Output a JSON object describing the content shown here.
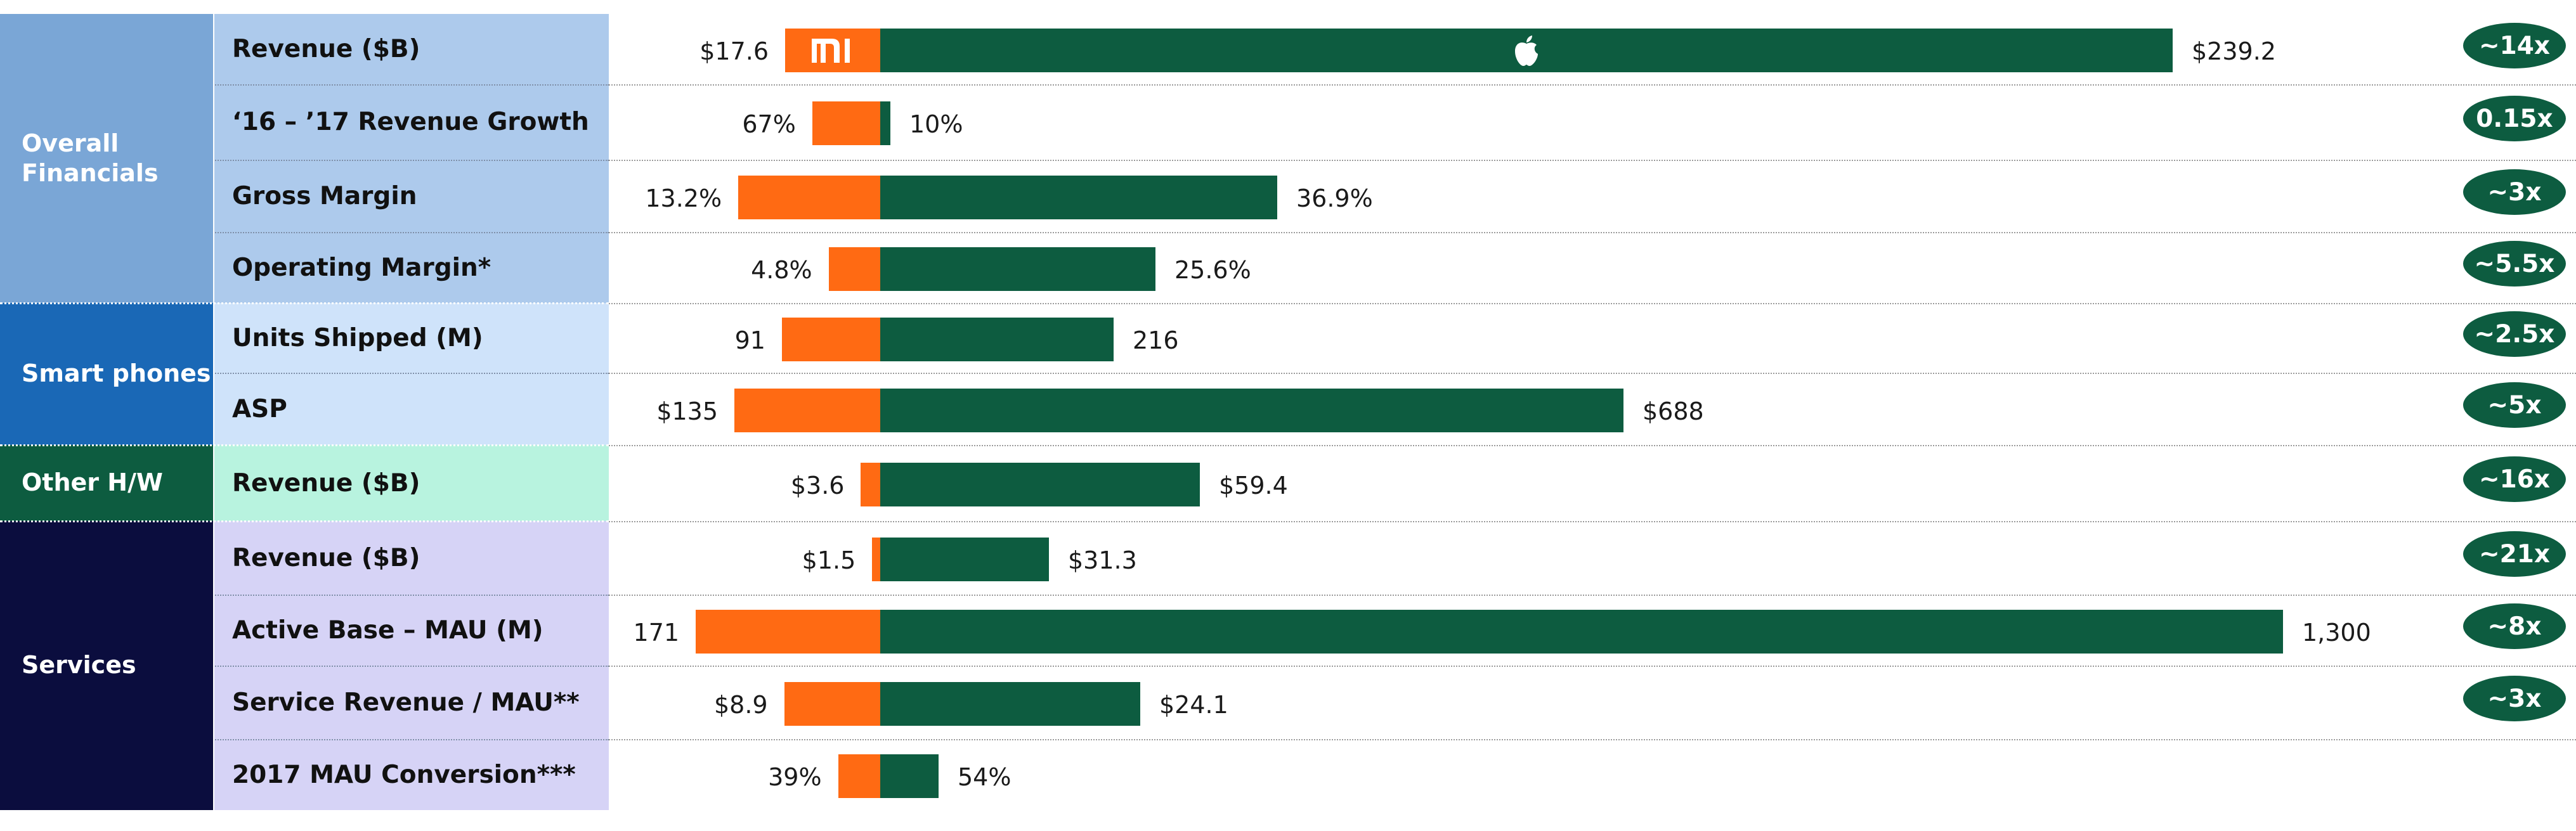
{
  "colors": {
    "xiaomi": "#ff6a13",
    "apple": "#0d5c40",
    "overall_financials": "#7aa6d6",
    "overall_financials_rows": "#adcaec",
    "smart_phones": "#1a68b6",
    "smart_phones_rows": "#cfe3fa",
    "other_hw": "#0d5c40",
    "other_hw_rows": "#b8f3df",
    "services": "#0b0d3e",
    "services_rows": "#d6d3f6"
  },
  "logos": {
    "xiaomi": "xiaomi-logo",
    "apple": "apple-logo"
  },
  "groups": [
    {
      "label": "Overall Financials",
      "rows": [
        0,
        1,
        2,
        3
      ],
      "color": "#7aa6d6",
      "row_color": "#adcaec",
      "text_color": "#ffffff"
    },
    {
      "label": "Smart phones",
      "rows": [
        4,
        5
      ],
      "color": "#1a68b6",
      "row_color": "#cfe3fa",
      "text_color": "#ffffff"
    },
    {
      "label": "Other H/W",
      "rows": [
        6
      ],
      "color": "#0d5c40",
      "row_color": "#b8f3df",
      "text_color": "#ffffff"
    },
    {
      "label": "Services",
      "rows": [
        7,
        8,
        9,
        10
      ],
      "color": "#0b0d3e",
      "row_color": "#d6d3f6",
      "text_color": "#ffffff"
    }
  ],
  "chart_data": {
    "type": "bar",
    "orientation": "horizontal-diverging",
    "note": "Xiaomi bars extend left, Apple bars extend right from a shared baseline; each row has its own scale.",
    "series": [
      {
        "name": "Xiaomi",
        "legend": "xiaomi-logo",
        "color": "#ff6a13"
      },
      {
        "name": "Apple",
        "legend": "apple-logo",
        "color": "#0d5c40"
      }
    ],
    "rows": [
      {
        "metric": "Revenue ($B)",
        "left_value": 17.6,
        "right_value": 239.2,
        "left_label": "$17.6",
        "right_label": "$239.2",
        "multiple": "~14x"
      },
      {
        "metric": "‘16 – ’17 Revenue Growth",
        "left_value": 67,
        "right_value": 10,
        "left_label": "67%",
        "right_label": "10%",
        "multiple": "0.15x"
      },
      {
        "metric": "Gross Margin",
        "left_value": 13.2,
        "right_value": 36.9,
        "left_label": "13.2%",
        "right_label": "36.9%",
        "multiple": "~3x"
      },
      {
        "metric": "Operating Margin*",
        "left_value": 4.8,
        "right_value": 25.6,
        "left_label": "4.8%",
        "right_label": "25.6%",
        "multiple": "~5.5x"
      },
      {
        "metric": "Units Shipped (M)",
        "left_value": 91,
        "right_value": 216,
        "left_label": "91",
        "right_label": "216",
        "multiple": "~2.5x"
      },
      {
        "metric": "ASP",
        "left_value": 135,
        "right_value": 688,
        "left_label": "$135",
        "right_label": "$688",
        "multiple": "~5x"
      },
      {
        "metric": "Revenue ($B)",
        "left_value": 3.6,
        "right_value": 59.4,
        "left_label": "$3.6",
        "right_label": "$59.4",
        "multiple": "~16x"
      },
      {
        "metric": "Revenue ($B)",
        "left_value": 1.5,
        "right_value": 31.3,
        "left_label": "$1.5",
        "right_label": "$31.3",
        "multiple": "~21x"
      },
      {
        "metric": "Active Base – MAU (M)",
        "left_value": 171,
        "right_value": 1300,
        "left_label": "171",
        "right_label": "1,300",
        "multiple": "~8x"
      },
      {
        "metric": "Service Revenue / MAU**",
        "left_value": 8.9,
        "right_value": 24.1,
        "left_label": "$8.9",
        "right_label": "$24.1",
        "multiple": "~3x"
      },
      {
        "metric": "2017 MAU Conversion***",
        "left_value": 39,
        "right_value": 54,
        "left_label": "39%",
        "right_label": "54%",
        "multiple": ""
      }
    ]
  }
}
